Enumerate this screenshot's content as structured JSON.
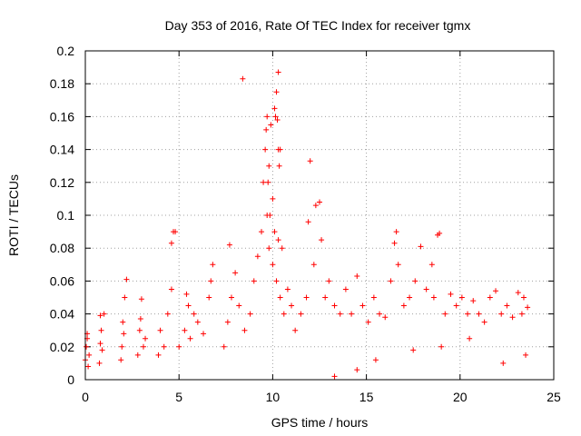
{
  "chart_data": {
    "type": "scatter",
    "title": "Day 353 of 2016, Rate Of TEC Index for receiver tgmx",
    "xlabel": "GPS time / hours",
    "ylabel": "ROTI / TECUs",
    "xlim": [
      0,
      25
    ],
    "ylim": [
      0,
      0.2
    ],
    "xticks": [
      0,
      5,
      10,
      15,
      20,
      25
    ],
    "yticks": [
      0,
      0.02,
      0.04,
      0.06,
      0.08,
      0.1,
      0.12,
      0.14,
      0.16,
      0.18,
      0.2
    ],
    "grid": true,
    "marker": "+",
    "color": "#ff0000",
    "series": [
      {
        "x": [
          0.0,
          0.05,
          0.1,
          0.15,
          0.2,
          0.1,
          0.75,
          0.8,
          0.85,
          0.9,
          1.0,
          0.8,
          1.9,
          2.0,
          2.1,
          2.2,
          1.95,
          2.05,
          2.8,
          2.9,
          3.0,
          3.1,
          3.2,
          2.95,
          3.9,
          4.0,
          4.2,
          4.4,
          4.6,
          4.8,
          4.6,
          4.7,
          5.0,
          5.3,
          5.5,
          5.4,
          5.6,
          5.8,
          6.0,
          6.3,
          6.6,
          6.8,
          6.7,
          7.4,
          7.6,
          7.8,
          8.0,
          8.2,
          7.7,
          8.4,
          8.5,
          8.8,
          9.0,
          9.2,
          9.4,
          9.5,
          9.6,
          9.7,
          9.8,
          9.9,
          10.0,
          10.1,
          10.2,
          10.3,
          10.4,
          10.5,
          9.65,
          9.75,
          9.85,
          10.15,
          10.25,
          10.3,
          10.35,
          9.7,
          9.8,
          10.0,
          10.1,
          10.2,
          10.4,
          10.3,
          10.6,
          10.8,
          11.0,
          11.2,
          11.5,
          11.8,
          12.0,
          12.3,
          12.5,
          12.6,
          11.9,
          12.2,
          12.8,
          13.0,
          13.3,
          13.6,
          13.9,
          14.2,
          14.5,
          14.8,
          15.1,
          15.4,
          15.7,
          16.0,
          16.3,
          16.6,
          16.5,
          16.7,
          17.0,
          17.3,
          17.6,
          17.9,
          18.2,
          18.5,
          18.8,
          18.9,
          18.6,
          19.2,
          19.5,
          19.8,
          20.1,
          20.4,
          20.7,
          21.0,
          21.3,
          21.6,
          21.9,
          22.2,
          22.5,
          22.8,
          23.1,
          23.4,
          23.6,
          23.3,
          13.3,
          14.5,
          15.5,
          17.5,
          19.0,
          20.5,
          22.3,
          23.5
        ],
        "y": [
          0.012,
          0.02,
          0.028,
          0.008,
          0.015,
          0.025,
          0.01,
          0.022,
          0.03,
          0.018,
          0.04,
          0.039,
          0.012,
          0.035,
          0.05,
          0.061,
          0.02,
          0.028,
          0.015,
          0.03,
          0.049,
          0.02,
          0.025,
          0.037,
          0.015,
          0.03,
          0.02,
          0.04,
          0.055,
          0.09,
          0.083,
          0.09,
          0.02,
          0.03,
          0.045,
          0.052,
          0.025,
          0.04,
          0.035,
          0.028,
          0.05,
          0.07,
          0.06,
          0.02,
          0.035,
          0.05,
          0.065,
          0.045,
          0.082,
          0.183,
          0.03,
          0.04,
          0.06,
          0.075,
          0.09,
          0.12,
          0.14,
          0.16,
          0.13,
          0.155,
          0.11,
          0.165,
          0.175,
          0.187,
          0.14,
          0.08,
          0.152,
          0.12,
          0.1,
          0.16,
          0.158,
          0.14,
          0.13,
          0.1,
          0.08,
          0.07,
          0.09,
          0.06,
          0.05,
          0.085,
          0.04,
          0.055,
          0.045,
          0.03,
          0.04,
          0.05,
          0.133,
          0.106,
          0.108,
          0.085,
          0.096,
          0.07,
          0.05,
          0.06,
          0.045,
          0.04,
          0.055,
          0.04,
          0.063,
          0.045,
          0.035,
          0.05,
          0.04,
          0.038,
          0.06,
          0.09,
          0.083,
          0.07,
          0.045,
          0.05,
          0.06,
          0.081,
          0.055,
          0.07,
          0.088,
          0.089,
          0.05,
          0.04,
          0.052,
          0.045,
          0.05,
          0.04,
          0.048,
          0.04,
          0.035,
          0.05,
          0.054,
          0.04,
          0.045,
          0.038,
          0.053,
          0.05,
          0.044,
          0.04,
          0.002,
          0.006,
          0.012,
          0.018,
          0.02,
          0.025,
          0.01,
          0.015
        ]
      }
    ]
  }
}
